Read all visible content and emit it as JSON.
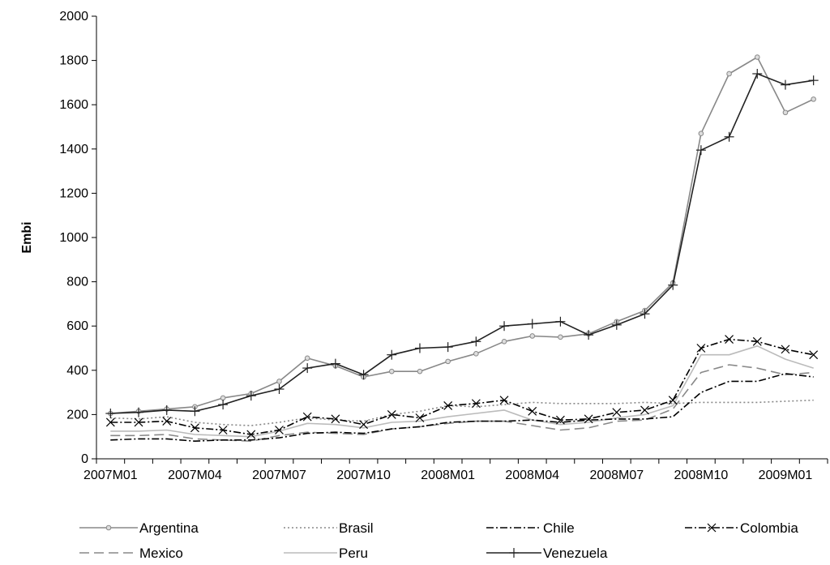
{
  "chart_data": {
    "type": "line",
    "ylabel": "Embi",
    "xlabel": "",
    "ylim": [
      0,
      2000
    ],
    "yticks": [
      0,
      200,
      400,
      600,
      800,
      1000,
      1200,
      1400,
      1600,
      1800,
      2000
    ],
    "x": [
      "2007M01",
      "2007M02",
      "2007M03",
      "2007M04",
      "2007M05",
      "2007M06",
      "2007M07",
      "2007M08",
      "2007M09",
      "2007M10",
      "2007M11",
      "2007M12",
      "2008M01",
      "2008M02",
      "2008M03",
      "2008M04",
      "2008M05",
      "2008M06",
      "2008M07",
      "2008M08",
      "2008M09",
      "2008M10",
      "2008M11",
      "2008M12",
      "2009M01",
      "2009M02"
    ],
    "xtick_labels": [
      "2007M01",
      "2007M04",
      "2007M07",
      "2007M10",
      "2008M01",
      "2008M04",
      "2008M07",
      "2008M10",
      "2009M01"
    ],
    "grid": false,
    "legend_position": "bottom",
    "series": [
      {
        "name": "Argentina",
        "color": "#888888",
        "dash": "",
        "marker": "dot",
        "values": [
          205,
          215,
          225,
          235,
          275,
          295,
          350,
          455,
          420,
          370,
          395,
          395,
          440,
          475,
          530,
          555,
          550,
          565,
          620,
          670,
          795,
          1470,
          1740,
          1815,
          1565,
          1625
        ]
      },
      {
        "name": "Brasil",
        "color": "#888888",
        "dash": "2,3",
        "marker": "none",
        "values": [
          185,
          180,
          190,
          165,
          155,
          150,
          165,
          185,
          175,
          170,
          200,
          215,
          240,
          235,
          245,
          255,
          250,
          250,
          250,
          255,
          250,
          255,
          255,
          255,
          260,
          265
        ]
      },
      {
        "name": "Chile",
        "color": "#000000",
        "dash": "9,3,2,3",
        "marker": "none",
        "values": [
          85,
          90,
          90,
          80,
          85,
          85,
          95,
          115,
          120,
          115,
          135,
          145,
          165,
          170,
          170,
          175,
          165,
          175,
          180,
          180,
          190,
          300,
          350,
          350,
          385,
          370
        ]
      },
      {
        "name": "Colombia",
        "color": "#000000",
        "dash": "9,3,2,3",
        "marker": "x",
        "values": [
          165,
          165,
          170,
          140,
          130,
          110,
          130,
          190,
          180,
          155,
          200,
          185,
          240,
          250,
          265,
          215,
          175,
          180,
          210,
          220,
          265,
          500,
          540,
          530,
          495,
          470
        ]
      },
      {
        "name": "Mexico",
        "color": "#888888",
        "dash": "12,6",
        "marker": "none",
        "values": [
          105,
          105,
          110,
          90,
          85,
          80,
          105,
          120,
          115,
          110,
          135,
          145,
          160,
          170,
          170,
          150,
          130,
          140,
          170,
          175,
          225,
          390,
          425,
          410,
          380,
          390
        ]
      },
      {
        "name": "Peru",
        "color": "#bbbbbb",
        "dash": "",
        "marker": "none",
        "values": [
          125,
          125,
          130,
          110,
          105,
          100,
          125,
          160,
          155,
          140,
          165,
          170,
          190,
          205,
          220,
          175,
          155,
          165,
          185,
          200,
          240,
          470,
          470,
          510,
          450,
          410
        ]
      },
      {
        "name": "Venezuela",
        "color": "#222222",
        "dash": "",
        "marker": "plus",
        "values": [
          205,
          210,
          220,
          215,
          245,
          285,
          315,
          410,
          430,
          380,
          470,
          500,
          505,
          530,
          600,
          610,
          620,
          560,
          605,
          655,
          785,
          1395,
          1455,
          1740,
          1690,
          1710
        ]
      }
    ]
  }
}
